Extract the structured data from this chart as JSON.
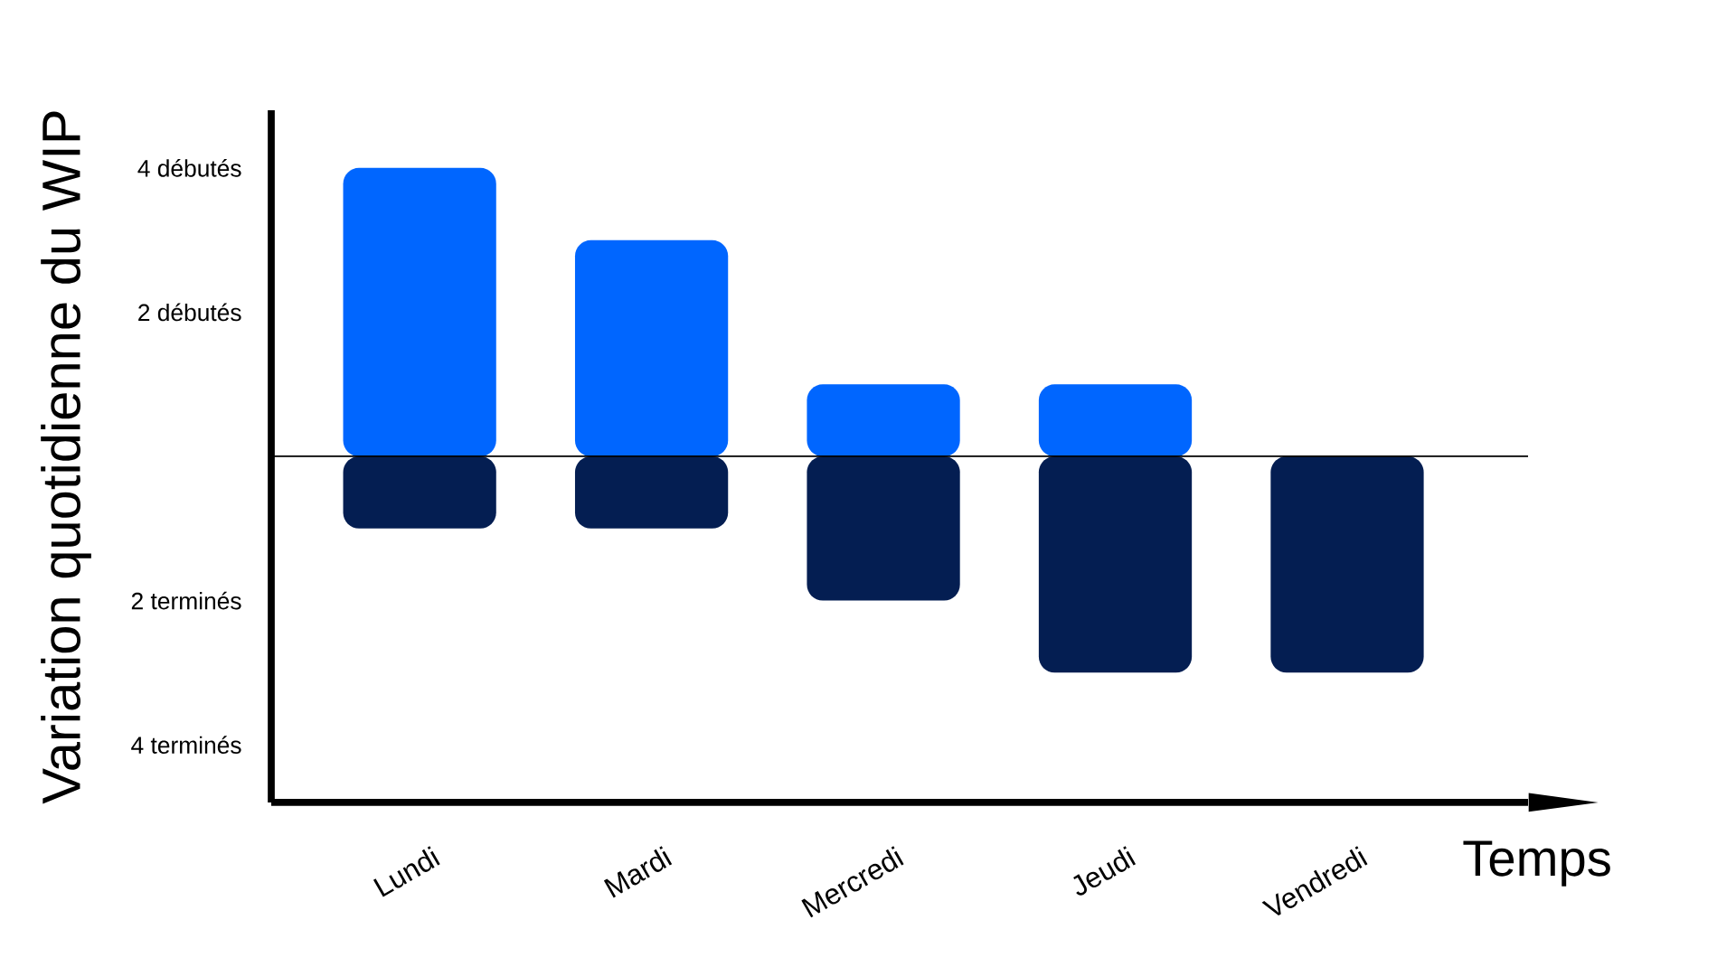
{
  "chart_data": {
    "type": "bar",
    "stacked": true,
    "xlabel": "Temps",
    "ylabel": "Variation quotidienne du WIP",
    "categories": [
      "Lundi",
      "Mardi",
      "Mercredi",
      "Jeudi",
      "Vendredi"
    ],
    "series": [
      {
        "color": "#0066ff",
        "values": [
          4,
          3,
          1,
          1,
          0
        ]
      },
      {
        "color": "#041e52",
        "values": [
          -1,
          -1,
          -2,
          -3,
          -3
        ]
      }
    ],
    "ylim": [
      -4.8,
      4.8
    ],
    "yticks": [
      {
        "value": 4,
        "label": "4 débutés"
      },
      {
        "value": 2,
        "label": "2 débutés"
      },
      {
        "value": -2,
        "label": "2 terminés"
      },
      {
        "value": -4,
        "label": "4 terminés"
      }
    ],
    "ref_lines": [
      {
        "axis": "y",
        "value": 0,
        "color": "#000000"
      }
    ],
    "grid": false
  }
}
